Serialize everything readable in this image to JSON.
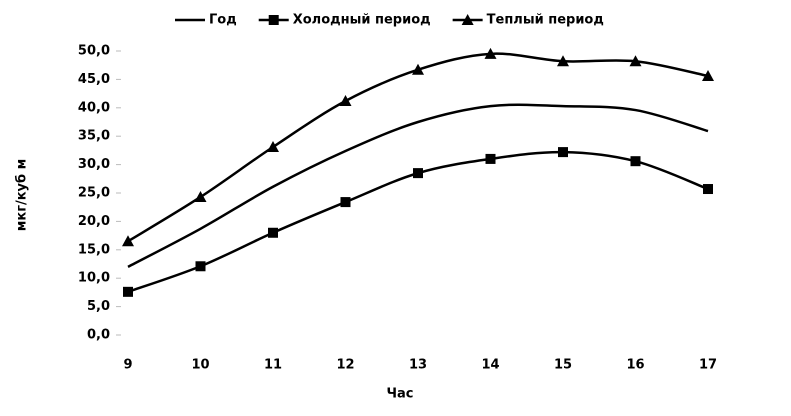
{
  "chart_data": {
    "type": "line",
    "x": [
      9,
      10,
      11,
      12,
      13,
      14,
      15,
      16,
      17
    ],
    "series": [
      {
        "name": "Год",
        "color": "#000000",
        "marker": "none",
        "values": [
          12.0,
          18.7,
          26.1,
          32.4,
          37.5,
          40.3,
          40.3,
          39.6,
          35.9
        ]
      },
      {
        "name": "Холодный период",
        "color": "#000000",
        "marker": "square",
        "values": [
          7.6,
          12.1,
          18.0,
          23.4,
          28.5,
          31.0,
          32.2,
          30.6,
          25.7
        ]
      },
      {
        "name": "Теплый период",
        "color": "#000000",
        "marker": "triangle",
        "values": [
          16.5,
          24.3,
          33.1,
          41.2,
          46.7,
          49.5,
          48.2,
          48.2,
          45.6
        ]
      }
    ],
    "xlim": [
      9,
      17
    ],
    "xticks": [
      9,
      10,
      11,
      12,
      13,
      14,
      15,
      16,
      17
    ],
    "ylim": [
      0,
      50
    ],
    "yticks": [
      {
        "value": 0,
        "label": "0,0"
      },
      {
        "value": 5,
        "label": "5,0"
      },
      {
        "value": 10,
        "label": "10,0"
      },
      {
        "value": 15,
        "label": "15,0"
      },
      {
        "value": 20,
        "label": "20,0"
      },
      {
        "value": 25,
        "label": "25,0"
      },
      {
        "value": 30,
        "label": "30,0"
      },
      {
        "value": 35,
        "label": "35,0"
      },
      {
        "value": 40,
        "label": "40,0"
      },
      {
        "value": 45,
        "label": "45,0"
      },
      {
        "value": 50,
        "label": "50,0"
      }
    ],
    "xlabel": "Час",
    "ylabel": "мкг/куб м",
    "smooth": true,
    "grid": false,
    "legend": "top"
  }
}
